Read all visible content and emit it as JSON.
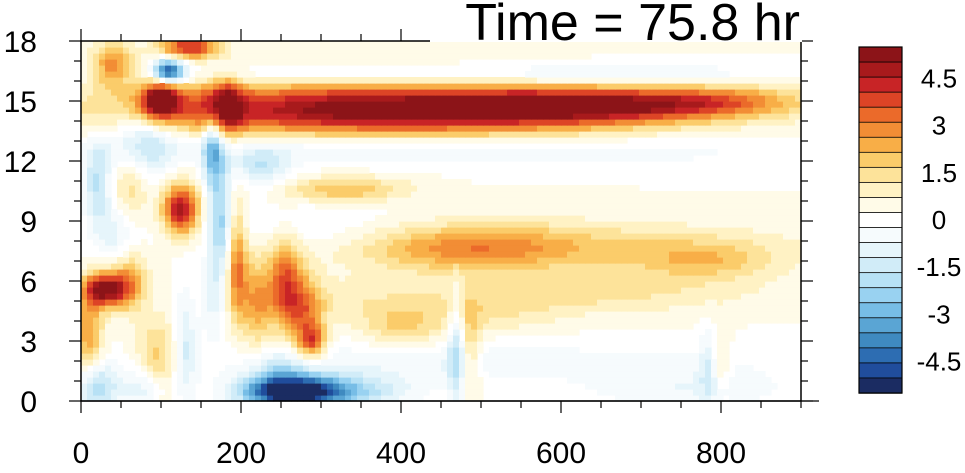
{
  "chart_data": {
    "type": "heatmap",
    "title": "Time = 75.8 hr",
    "xlabel": "",
    "ylabel": "",
    "xlim": [
      0,
      900
    ],
    "ylim": [
      0,
      18
    ],
    "x_ticks": [
      0,
      200,
      400,
      600,
      800
    ],
    "y_ticks": [
      0,
      3,
      6,
      9,
      12,
      15,
      18
    ],
    "x_tick_labels": [
      "0",
      "200",
      "400",
      "600",
      "800"
    ],
    "y_tick_labels": [
      "0",
      "3",
      "6",
      "9",
      "12",
      "15",
      "18"
    ],
    "colorbar": {
      "levels": [
        -5.5,
        -5,
        -4.5,
        -4,
        -3.5,
        -3,
        -2.5,
        -2,
        -1.5,
        -1,
        -0.5,
        0,
        0.5,
        1,
        1.5,
        2,
        2.5,
        3,
        3.5,
        4,
        4.5,
        5,
        5.5
      ],
      "colors": [
        "#1b2c62",
        "#204d9c",
        "#2d6db2",
        "#3f8ac0",
        "#5aa5d4",
        "#77bde6",
        "#99d2f1",
        "#b7e1f5",
        "#d1ecf8",
        "#e6f5fb",
        "#f6fbfd",
        "#ffffff",
        "#fffbe8",
        "#fff2c4",
        "#fde39a",
        "#fbcc6a",
        "#f8ae47",
        "#f28d35",
        "#eb6a2a",
        "#dd4426",
        "#c82426",
        "#a81a1c",
        "#8c1418"
      ],
      "tick_values": [
        4.5,
        3,
        1.5,
        0,
        -1.5,
        -3,
        -4.5
      ],
      "tick_labels": [
        "4.5",
        "3",
        "1.5",
        "0",
        "-1.5",
        "-3",
        "-4.5"
      ]
    },
    "features": [
      {
        "x": 380,
        "y": 14.6,
        "sx": 210,
        "sy": 0.95,
        "v": 5.6
      },
      {
        "x": 640,
        "y": 14.8,
        "sx": 110,
        "sy": 0.6,
        "v": 3.4
      },
      {
        "x": 800,
        "y": 15.0,
        "sx": 80,
        "sy": 0.55,
        "v": 2.2
      },
      {
        "x": 175,
        "y": 14.8,
        "sx": 18,
        "sy": 1.0,
        "v": 4.0
      },
      {
        "x": 400,
        "y": 16.3,
        "sx": 230,
        "sy": 0.35,
        "v": -1.2
      },
      {
        "x": 700,
        "y": 16.4,
        "sx": 120,
        "sy": 0.35,
        "v": -0.8
      },
      {
        "x": 330,
        "y": 12.7,
        "sx": 170,
        "sy": 0.6,
        "v": -1.2
      },
      {
        "x": 680,
        "y": 12.5,
        "sx": 160,
        "sy": 0.6,
        "v": -0.7
      },
      {
        "x": 225,
        "y": 11.7,
        "sx": 25,
        "sy": 0.7,
        "v": -1.8
      },
      {
        "x": 330,
        "y": 10.6,
        "sx": 55,
        "sy": 0.45,
        "v": 2.0
      },
      {
        "x": 270,
        "y": 8.6,
        "sx": 110,
        "sy": 0.9,
        "v": -0.7
      },
      {
        "x": 480,
        "y": 7.7,
        "sx": 95,
        "sy": 0.85,
        "v": 2.1
      },
      {
        "x": 630,
        "y": 7.7,
        "sx": 180,
        "sy": 0.9,
        "v": 1.3
      },
      {
        "x": 780,
        "y": 7.0,
        "sx": 60,
        "sy": 0.7,
        "v": 1.4
      },
      {
        "x": 640,
        "y": 5.4,
        "sx": 140,
        "sy": 0.7,
        "v": 1.1
      },
      {
        "x": 500,
        "y": 4.4,
        "sx": 70,
        "sy": 0.8,
        "v": 0.9
      },
      {
        "x": 400,
        "y": 3.7,
        "sx": 35,
        "sy": 0.8,
        "v": 1.4
      },
      {
        "x": 300,
        "y": 5.0,
        "sx": 80,
        "sy": 0.8,
        "v": 0.8
      },
      {
        "x": 360,
        "y": 2.0,
        "sx": 150,
        "sy": 0.8,
        "v": -0.6
      },
      {
        "x": 620,
        "y": 2.0,
        "sx": 200,
        "sy": 0.8,
        "v": -0.5
      },
      {
        "x": 760,
        "y": 0.6,
        "sx": 90,
        "sy": 0.8,
        "v": -0.9
      },
      {
        "x": 260,
        "y": 0.45,
        "sx": 42,
        "sy": 0.55,
        "v": -5.5
      },
      {
        "x": 320,
        "y": 0.5,
        "sx": 60,
        "sy": 0.6,
        "v": -2.5
      },
      {
        "x": 250,
        "y": 1.5,
        "sx": 30,
        "sy": 0.7,
        "v": -1.6
      },
      {
        "x": 470,
        "y": 2.5,
        "sx": 8,
        "sy": 2.0,
        "v": -2.2
      },
      {
        "x": 485,
        "y": 2.4,
        "sx": 10,
        "sy": 1.6,
        "v": 1.7
      },
      {
        "x": 785,
        "y": 1.8,
        "sx": 8,
        "sy": 1.3,
        "v": -1.3
      },
      {
        "x": 798,
        "y": 1.9,
        "sx": 9,
        "sy": 1.1,
        "v": 1.2
      },
      {
        "x": 255,
        "y": 6.0,
        "sx": 14,
        "sy": 1.6,
        "v": 3.2
      },
      {
        "x": 280,
        "y": 4.4,
        "sx": 15,
        "sy": 1.4,
        "v": 2.4
      },
      {
        "x": 290,
        "y": 3.0,
        "sx": 12,
        "sy": 0.6,
        "v": 3.0
      },
      {
        "x": 220,
        "y": 5.0,
        "sx": 14,
        "sy": 1.8,
        "v": 2.0
      },
      {
        "x": 165,
        "y": 13.0,
        "sx": 10,
        "sy": 1.8,
        "v": -3.2
      },
      {
        "x": 175,
        "y": 9.0,
        "sx": 10,
        "sy": 2.0,
        "v": -2.2
      },
      {
        "x": 195,
        "y": 7.0,
        "sx": 9,
        "sy": 2.0,
        "v": 3.0
      },
      {
        "x": 165,
        "y": 5.2,
        "sx": 11,
        "sy": 1.4,
        "v": -1.3
      },
      {
        "x": 130,
        "y": 2.8,
        "sx": 10,
        "sy": 2.0,
        "v": -1.6
      },
      {
        "x": 125,
        "y": 9.6,
        "sx": 16,
        "sy": 0.9,
        "v": 5.0
      },
      {
        "x": 100,
        "y": 15.1,
        "sx": 18,
        "sy": 0.7,
        "v": 5.2
      },
      {
        "x": 110,
        "y": 16.5,
        "sx": 14,
        "sy": 0.45,
        "v": -5.2
      },
      {
        "x": 135,
        "y": 17.7,
        "sx": 26,
        "sy": 0.4,
        "v": 4.2
      },
      {
        "x": 40,
        "y": 16.8,
        "sx": 18,
        "sy": 0.8,
        "v": 2.8
      },
      {
        "x": 80,
        "y": 13.0,
        "sx": 30,
        "sy": 1.2,
        "v": -2.0
      },
      {
        "x": 30,
        "y": 5.6,
        "sx": 18,
        "sy": 0.6,
        "v": 5.3
      },
      {
        "x": 60,
        "y": 6.0,
        "sx": 15,
        "sy": 1.0,
        "v": 2.5
      },
      {
        "x": 10,
        "y": 3.5,
        "sx": 12,
        "sy": 1.5,
        "v": 2.5
      },
      {
        "x": 20,
        "y": 11.0,
        "sx": 12,
        "sy": 1.5,
        "v": -2.0
      },
      {
        "x": 95,
        "y": 2.0,
        "sx": 18,
        "sy": 1.5,
        "v": 1.8
      },
      {
        "x": 45,
        "y": 8.5,
        "sx": 18,
        "sy": 1.2,
        "v": -1.4
      },
      {
        "x": 20,
        "y": 0.7,
        "sx": 18,
        "sy": 0.9,
        "v": -2.5
      },
      {
        "x": 80,
        "y": 0.7,
        "sx": 20,
        "sy": 0.7,
        "v": -1.8
      },
      {
        "x": 60,
        "y": 10.5,
        "sx": 16,
        "sy": 1.4,
        "v": 1.5
      }
    ]
  }
}
